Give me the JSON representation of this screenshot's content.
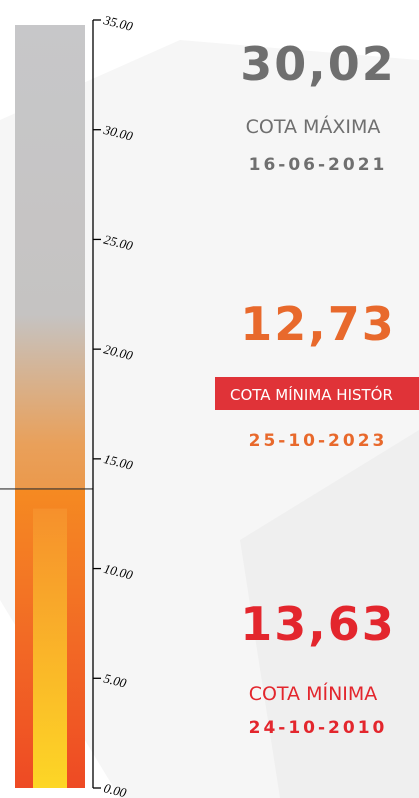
{
  "gauge": {
    "ylim": [
      0,
      35
    ],
    "yticks": [
      {
        "value": 0,
        "label": "0.00"
      },
      {
        "value": 5,
        "label": "5.00"
      },
      {
        "value": 10,
        "label": "10.00"
      },
      {
        "value": 15,
        "label": "15.00"
      },
      {
        "value": 20,
        "label": "20.00"
      },
      {
        "value": 25,
        "label": "25.00"
      },
      {
        "value": 30,
        "label": "30.00"
      },
      {
        "value": 35,
        "label": "35.00"
      }
    ],
    "level": 13.63,
    "inner_level": 12.73
  },
  "panels": [
    {
      "value": "30,02",
      "label": "COTA MÁXIMA",
      "date": "16-06-2021",
      "color": "#6f6f6f"
    },
    {
      "value": "12,73",
      "label": "COTA MÍNIMA HISTÓR",
      "date": "25-10-2023",
      "color": "#e8692c"
    },
    {
      "value": "13,63",
      "label": "COTA MÍNIMA",
      "date": "24-10-2010",
      "color": "#e3262d"
    }
  ]
}
